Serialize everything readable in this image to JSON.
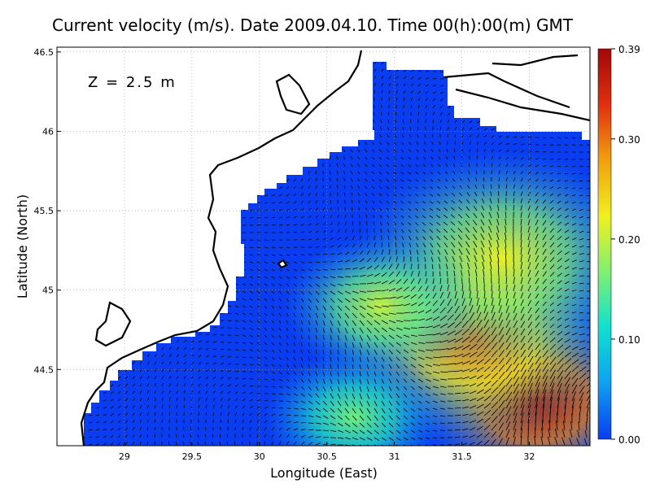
{
  "chart_data": {
    "type": "heatmap",
    "title": "Current velocity (m/s). Date 2009.04.10. Time 00(h):00(m) GMT",
    "annotation": "Z = 2.5 m",
    "xlabel": "Longitude (East)",
    "ylabel": "Latitude (North)",
    "xlim": [
      28.5,
      32.45
    ],
    "ylim": [
      44.02,
      46.53
    ],
    "xticks": [
      29,
      29.5,
      30,
      30.5,
      31,
      31.5,
      32
    ],
    "xtick_labels": [
      "29",
      "29.5",
      "30",
      "30.5",
      "31",
      "31.5",
      "32"
    ],
    "yticks": [
      44.5,
      45,
      45.5,
      46,
      46.5
    ],
    "ytick_labels": [
      "44.5",
      "45",
      "45.5",
      "46",
      "46.5"
    ],
    "grid": true,
    "colorbar": {
      "min": 0.0,
      "max": 0.39,
      "ticks": [
        0.0,
        0.1,
        0.2,
        0.3,
        0.39
      ],
      "tick_labels": [
        "0.00",
        "0.10",
        "0.20",
        "0.30",
        "0.39"
      ],
      "colormap": [
        "#0a3cf0",
        "#10a0f0",
        "#10e0d0",
        "#80f070",
        "#f0f020",
        "#f0a010",
        "#e03010",
        "#a00808"
      ]
    },
    "land_color": "#ffffff",
    "sea_base_color": "#0a3cf0",
    "vector_color": "#000000",
    "high_velocity_regions": [
      {
        "lon": 32.05,
        "lat": 44.3,
        "velocity": 0.39
      },
      {
        "lon": 31.6,
        "lat": 44.7,
        "velocity": 0.3
      },
      {
        "lon": 31.8,
        "lat": 45.2,
        "velocity": 0.22
      },
      {
        "lon": 30.9,
        "lat": 44.9,
        "velocity": 0.2
      },
      {
        "lon": 30.7,
        "lat": 44.2,
        "velocity": 0.16
      }
    ]
  }
}
